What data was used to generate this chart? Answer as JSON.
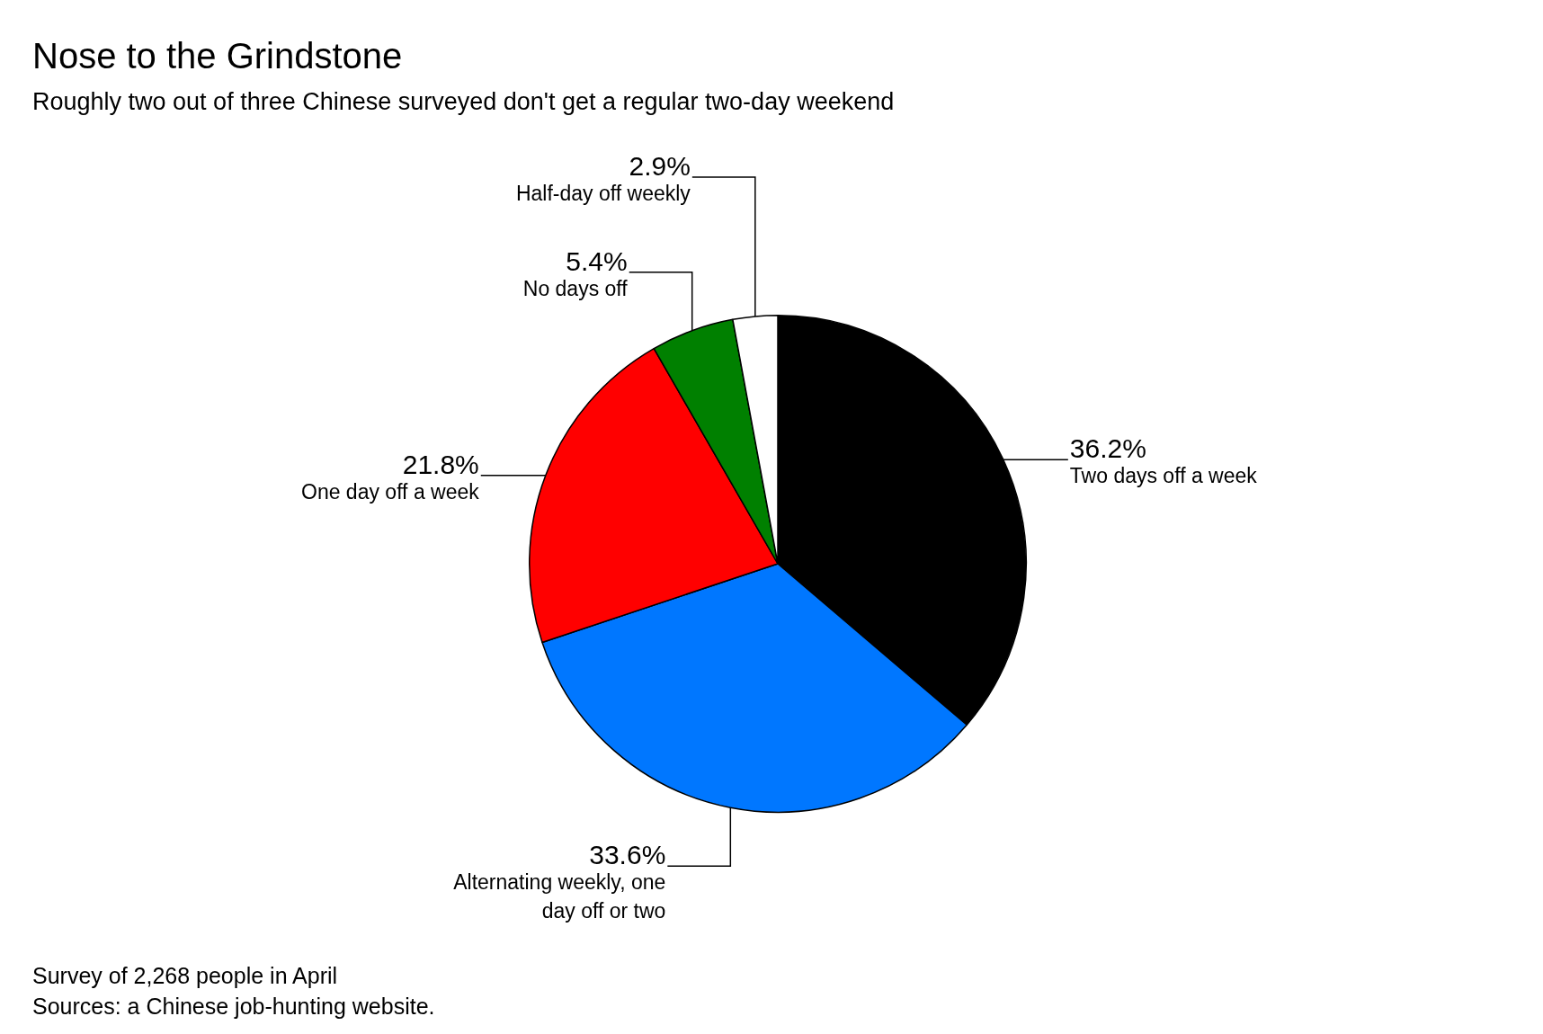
{
  "chart_data": {
    "type": "pie",
    "title": "Nose to the Grindstone",
    "subtitle": "Roughly two out of three Chinese surveyed don't get a regular two-day weekend",
    "categories": [
      "Two days off a week",
      "Alternating weekly, one day off or two",
      "One day off a week",
      "No days off",
      "Half-day off weekly"
    ],
    "values": [
      36.2,
      33.6,
      21.8,
      5.4,
      2.9
    ],
    "value_labels": [
      "36.2%",
      "33.6%",
      "21.8%",
      "5.4%",
      "2.9%"
    ],
    "colors": [
      "#000000",
      "#0077ff",
      "#ff0000",
      "#008000",
      "#ffffff"
    ],
    "legend": false,
    "annotations": [
      "Survey of 2,268 people in April",
      "Sources: a Chinese job-hunting website."
    ]
  }
}
